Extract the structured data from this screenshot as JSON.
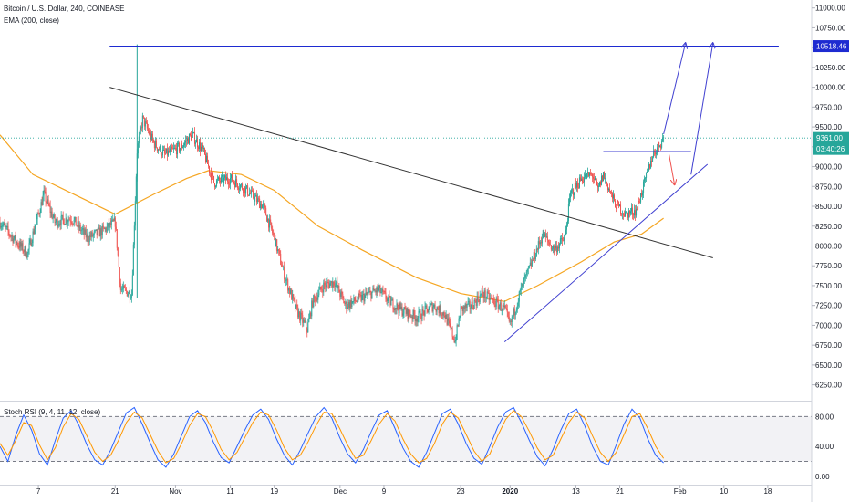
{
  "header": {
    "title": "Bitcoin / U.S. Dollar, 240, COINBASE",
    "indicator": "EMA (200, close)"
  },
  "oscillator": {
    "title": "Stoch RSI (9, 4, 11, 12, close)"
  },
  "colors": {
    "up": "#26a69a",
    "down": "#ef5350",
    "ema": "#f5a623",
    "trendline": "#333333",
    "channel": "#3f3fd0",
    "target_arrow": "#ef5350",
    "k_line": "#2962ff",
    "d_line": "#ff9800",
    "tag_blue": "#1e2bd1",
    "tag_teal": "#26a69a"
  },
  "tags": {
    "target": "10518.46",
    "last_price": "9361.00",
    "countdown": "03:40:26"
  },
  "chart_data": [
    {
      "type": "candlestick",
      "title": "Bitcoin / U.S. Dollar, 240, COINBASE",
      "y_axis": {
        "ticks": [
          "11000.00",
          "10750.00",
          "10500.00",
          "10250.00",
          "10000.00",
          "9750.00",
          "9500.00",
          "9250.00",
          "9000.00",
          "8750.00",
          "8500.00",
          "8250.00",
          "8000.00",
          "7750.00",
          "7500.00",
          "7250.00",
          "7000.00",
          "6750.00",
          "6500.00",
          "6250.00"
        ],
        "range": [
          6050,
          11100
        ]
      },
      "x_axis": {
        "ticks": [
          "7",
          "21",
          "Nov",
          "11",
          "19",
          "Dec",
          "9",
          "23",
          "2020",
          "13",
          "21",
          "Feb",
          "10",
          "18"
        ],
        "tick_days": [
          7,
          21,
          32,
          42,
          50,
          62,
          70,
          84,
          93,
          105,
          113,
          124,
          132,
          140
        ],
        "range_days": [
          0,
          148
        ],
        "note": "days counted from 2019-10-01"
      },
      "price_series": [
        {
          "day": 0,
          "close": 8300
        },
        {
          "day": 3,
          "close": 8050
        },
        {
          "day": 5,
          "close": 7900
        },
        {
          "day": 8,
          "close": 8650
        },
        {
          "day": 10,
          "close": 8300
        },
        {
          "day": 13,
          "close": 8350
        },
        {
          "day": 16,
          "close": 8100
        },
        {
          "day": 19,
          "close": 8200
        },
        {
          "day": 21,
          "close": 8300
        },
        {
          "day": 22,
          "close": 7450
        },
        {
          "day": 24,
          "close": 7400
        },
        {
          "day": 25,
          "close": 9200
        },
        {
          "day": 26,
          "close": 9600
        },
        {
          "day": 28,
          "close": 9300
        },
        {
          "day": 30,
          "close": 9150
        },
        {
          "day": 33,
          "close": 9250
        },
        {
          "day": 35,
          "close": 9400
        },
        {
          "day": 37,
          "close": 9200
        },
        {
          "day": 39,
          "close": 8800
        },
        {
          "day": 42,
          "close": 8850
        },
        {
          "day": 45,
          "close": 8700
        },
        {
          "day": 48,
          "close": 8500
        },
        {
          "day": 50,
          "close": 8100
        },
        {
          "day": 52,
          "close": 7600
        },
        {
          "day": 54,
          "close": 7200
        },
        {
          "day": 56,
          "close": 6950
        },
        {
          "day": 57,
          "close": 7300
        },
        {
          "day": 59,
          "close": 7500
        },
        {
          "day": 61,
          "close": 7550
        },
        {
          "day": 63,
          "close": 7250
        },
        {
          "day": 66,
          "close": 7350
        },
        {
          "day": 69,
          "close": 7450
        },
        {
          "day": 71,
          "close": 7300
        },
        {
          "day": 73,
          "close": 7200
        },
        {
          "day": 76,
          "close": 7100
        },
        {
          "day": 79,
          "close": 7250
        },
        {
          "day": 81,
          "close": 7150
        },
        {
          "day": 83,
          "close": 6800
        },
        {
          "day": 84,
          "close": 7200
        },
        {
          "day": 86,
          "close": 7250
        },
        {
          "day": 88,
          "close": 7400
        },
        {
          "day": 90,
          "close": 7300
        },
        {
          "day": 92,
          "close": 7200
        },
        {
          "day": 93,
          "close": 7000
        },
        {
          "day": 95,
          "close": 7450
        },
        {
          "day": 97,
          "close": 7800
        },
        {
          "day": 99,
          "close": 8150
        },
        {
          "day": 101,
          "close": 7950
        },
        {
          "day": 103,
          "close": 8100
        },
        {
          "day": 104,
          "close": 8650
        },
        {
          "day": 106,
          "close": 8850
        },
        {
          "day": 108,
          "close": 8900
        },
        {
          "day": 109,
          "close": 8700
        },
        {
          "day": 110,
          "close": 8900
        },
        {
          "day": 112,
          "close": 8550
        },
        {
          "day": 114,
          "close": 8400
        },
        {
          "day": 116,
          "close": 8450
        },
        {
          "day": 118,
          "close": 8900
        },
        {
          "day": 119,
          "close": 9150
        },
        {
          "day": 121,
          "close": 9361
        }
      ],
      "ema_series": [
        {
          "day": 0,
          "value": 9400
        },
        {
          "day": 6,
          "value": 8900
        },
        {
          "day": 15,
          "value": 8600
        },
        {
          "day": 21,
          "value": 8400
        },
        {
          "day": 28,
          "value": 8650
        },
        {
          "day": 34,
          "value": 8850
        },
        {
          "day": 38,
          "value": 8950
        },
        {
          "day": 44,
          "value": 8900
        },
        {
          "day": 50,
          "value": 8700
        },
        {
          "day": 58,
          "value": 8250
        },
        {
          "day": 66,
          "value": 7950
        },
        {
          "day": 76,
          "value": 7600
        },
        {
          "day": 84,
          "value": 7400
        },
        {
          "day": 92,
          "value": 7300
        },
        {
          "day": 98,
          "value": 7500
        },
        {
          "day": 106,
          "value": 7800
        },
        {
          "day": 112,
          "value": 8050
        },
        {
          "day": 117,
          "value": 8150
        },
        {
          "day": 121,
          "value": 8350
        }
      ],
      "lines": [
        {
          "name": "descending-trendline",
          "from": {
            "day": 20,
            "price": 10000
          },
          "to": {
            "day": 130,
            "price": 7850
          }
        },
        {
          "name": "target-level",
          "from": {
            "day": 20,
            "price": 10518.46
          },
          "to": {
            "day": 142,
            "price": 10518.46
          }
        },
        {
          "name": "breakout-level",
          "from": {
            "day": 110,
            "price": 9190
          },
          "to": {
            "day": 126,
            "price": 9190
          }
        },
        {
          "name": "rising-support",
          "from": {
            "day": 92,
            "price": 6790
          },
          "to": {
            "day": 129,
            "price": 9030
          }
        },
        {
          "name": "price-dotted-level",
          "from": {
            "day": 0,
            "price": 9361
          },
          "to": {
            "day": 142,
            "price": 9361
          }
        }
      ],
      "projection_arrows": [
        {
          "name": "projection-1",
          "from": {
            "day": 121,
            "price": 9410
          },
          "to": {
            "day": 125,
            "price": 10560
          }
        },
        {
          "name": "projection-2",
          "from": {
            "day": 126,
            "price": 8900
          },
          "to": {
            "day": 130,
            "price": 10560
          }
        },
        {
          "name": "pullback-arrow",
          "from": {
            "day": 122,
            "price": 9150
          },
          "to": {
            "day": 123,
            "price": 8770
          }
        }
      ]
    },
    {
      "type": "line",
      "title": "Stoch RSI (9, 4, 11, 12, close)",
      "y_axis": {
        "ticks": [
          "80.00",
          "40.00",
          "0.00"
        ],
        "range": [
          -10,
          100
        ]
      },
      "bands": [
        80,
        20
      ],
      "series": [
        {
          "values": [
            40,
            20,
            55,
            82,
            62,
            30,
            15,
            48,
            78,
            88,
            68,
            42,
            22,
            15,
            35,
            60,
            85,
            92,
            70,
            45,
            22,
            12,
            30,
            55,
            80,
            88,
            72,
            46,
            25,
            18,
            40,
            62,
            82,
            90,
            76,
            50,
            28,
            15,
            35,
            58,
            80,
            92,
            78,
            52,
            30,
            18,
            36,
            60,
            82,
            88,
            64,
            38,
            20,
            12,
            32,
            58,
            84,
            90,
            70,
            44,
            24,
            16,
            40,
            66,
            86,
            92,
            72,
            48,
            26,
            14,
            36,
            62,
            84,
            90,
            68,
            40,
            20,
            15,
            42,
            70,
            90,
            78,
            50,
            28,
            18
          ]
        },
        {
          "values": [
            44,
            28,
            48,
            72,
            68,
            42,
            22,
            38,
            66,
            84,
            76,
            54,
            32,
            20,
            28,
            48,
            72,
            86,
            78,
            56,
            34,
            18,
            24,
            44,
            68,
            84,
            80,
            60,
            36,
            22,
            32,
            52,
            72,
            86,
            82,
            62,
            38,
            22,
            28,
            46,
            68,
            86,
            84,
            64,
            42,
            24,
            28,
            48,
            70,
            84,
            74,
            50,
            30,
            18,
            24,
            44,
            70,
            86,
            78,
            56,
            34,
            20,
            30,
            54,
            76,
            88,
            80,
            60,
            38,
            22,
            28,
            50,
            72,
            86,
            78,
            54,
            32,
            20,
            32,
            56,
            80,
            84,
            64,
            40,
            24
          ]
        }
      ]
    }
  ]
}
